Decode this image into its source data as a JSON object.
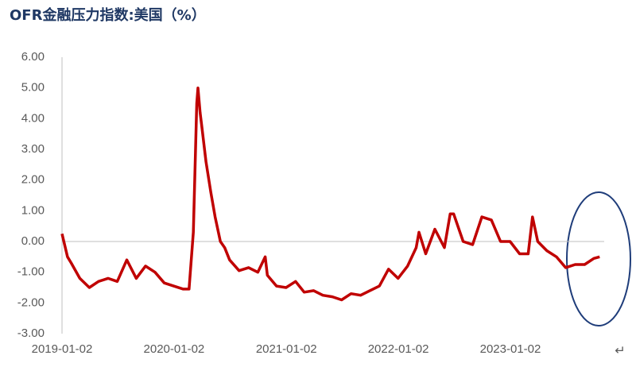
{
  "chart_data": {
    "type": "line",
    "title": "OFR金融压力指数:美国（%）",
    "x": [
      "2019-01-02",
      "2019-01-20",
      "2019-02-01",
      "2019-03-01",
      "2019-04-01",
      "2019-05-01",
      "2019-06-01",
      "2019-07-01",
      "2019-08-01",
      "2019-09-01",
      "2019-10-01",
      "2019-11-01",
      "2019-12-01",
      "2020-01-01",
      "2020-02-01",
      "2020-02-20",
      "2020-03-05",
      "2020-03-16",
      "2020-03-20",
      "2020-03-27",
      "2020-04-01",
      "2020-04-15",
      "2020-05-01",
      "2020-05-15",
      "2020-06-01",
      "2020-06-15",
      "2020-07-01",
      "2020-08-01",
      "2020-09-01",
      "2020-10-01",
      "2020-10-25",
      "2020-11-01",
      "2020-12-01",
      "2021-01-01",
      "2021-02-01",
      "2021-03-01",
      "2021-04-01",
      "2021-05-01",
      "2021-06-01",
      "2021-07-01",
      "2021-08-01",
      "2021-09-01",
      "2021-10-01",
      "2021-11-01",
      "2021-12-01",
      "2022-01-01",
      "2022-02-01",
      "2022-03-01",
      "2022-03-10",
      "2022-04-01",
      "2022-05-01",
      "2022-06-01",
      "2022-06-20",
      "2022-07-01",
      "2022-08-01",
      "2022-09-01",
      "2022-10-01",
      "2022-11-01",
      "2022-12-01",
      "2023-01-01",
      "2023-02-01",
      "2023-03-01",
      "2023-03-15",
      "2023-04-01",
      "2023-05-01",
      "2023-06-01",
      "2023-07-01",
      "2023-08-01",
      "2023-09-01",
      "2023-10-01",
      "2023-10-20"
    ],
    "values": [
      0.25,
      -0.5,
      -0.7,
      -1.2,
      -1.5,
      -1.3,
      -1.2,
      -1.3,
      -0.6,
      -1.2,
      -0.8,
      -1.0,
      -1.35,
      -1.45,
      -1.55,
      -1.55,
      0.3,
      4.5,
      5.0,
      4.2,
      3.8,
      2.6,
      1.6,
      0.8,
      0.0,
      -0.2,
      -0.6,
      -0.95,
      -0.85,
      -1.0,
      -0.5,
      -1.1,
      -1.45,
      -1.5,
      -1.3,
      -1.65,
      -1.6,
      -1.75,
      -1.8,
      -1.9,
      -1.7,
      -1.75,
      -1.6,
      -1.45,
      -0.9,
      -1.2,
      -0.8,
      -0.2,
      0.3,
      -0.4,
      0.4,
      -0.2,
      0.9,
      0.9,
      0.0,
      -0.1,
      0.8,
      0.7,
      0.0,
      0.0,
      -0.4,
      -0.4,
      0.8,
      0.0,
      -0.3,
      -0.5,
      -0.85,
      -0.75,
      -0.75,
      -0.55,
      -0.5
    ],
    "color": "#c00000",
    "ylim": [
      -3,
      6
    ],
    "yticks": [
      {
        "value": 6,
        "label": "6.00"
      },
      {
        "value": 5,
        "label": "5.00"
      },
      {
        "value": 4,
        "label": "4.00"
      },
      {
        "value": 3,
        "label": "3.00"
      },
      {
        "value": 2,
        "label": "2.00"
      },
      {
        "value": 1,
        "label": "1.00"
      },
      {
        "value": 0,
        "label": "0.00"
      },
      {
        "value": -1,
        "label": "-1.00"
      },
      {
        "value": -2,
        "label": "-2.00"
      },
      {
        "value": -3,
        "label": "-3.00"
      }
    ],
    "xticks": [
      "2019-01-02",
      "2020-01-02",
      "2021-01-02",
      "2022-01-02",
      "2023-01-02"
    ]
  },
  "corner_mark": "↵"
}
